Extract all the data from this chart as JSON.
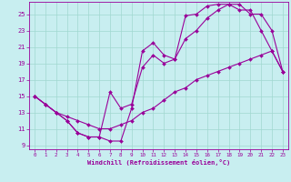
{
  "xlabel": "Windchill (Refroidissement éolien,°C)",
  "background_color": "#c8eef0",
  "grid_color": "#a0d8d0",
  "line_color": "#990099",
  "xlim": [
    -0.5,
    23.5
  ],
  "ylim": [
    8.5,
    26.5
  ],
  "xticks": [
    0,
    1,
    2,
    3,
    4,
    5,
    6,
    7,
    8,
    9,
    10,
    11,
    12,
    13,
    14,
    15,
    16,
    17,
    18,
    19,
    20,
    21,
    22,
    23
  ],
  "yticks": [
    9,
    11,
    13,
    15,
    17,
    19,
    21,
    23,
    25
  ],
  "line1_x": [
    0,
    1,
    2,
    3,
    4,
    5,
    6,
    7,
    8,
    9,
    10,
    11,
    12,
    13,
    14,
    15,
    16,
    17,
    18,
    19,
    20,
    21,
    22,
    23
  ],
  "line1_y": [
    15.0,
    14.0,
    13.0,
    12.0,
    10.5,
    10.0,
    10.0,
    9.5,
    9.5,
    13.5,
    20.5,
    21.5,
    20.0,
    19.5,
    24.8,
    25.0,
    26.0,
    26.2,
    26.2,
    25.5,
    25.5,
    23.0,
    20.5,
    18.0
  ],
  "line2_x": [
    0,
    1,
    2,
    3,
    4,
    5,
    6,
    7,
    8,
    9,
    10,
    11,
    12,
    13,
    14,
    15,
    16,
    17,
    18,
    19,
    20,
    21,
    22,
    23
  ],
  "line2_y": [
    15.0,
    14.0,
    13.0,
    12.0,
    10.5,
    10.0,
    10.0,
    15.5,
    13.5,
    14.0,
    18.5,
    20.0,
    19.0,
    19.5,
    22.0,
    23.0,
    24.5,
    25.5,
    26.2,
    26.2,
    25.0,
    25.0,
    23.0,
    18.0
  ],
  "line3_x": [
    0,
    1,
    2,
    3,
    4,
    5,
    6,
    7,
    8,
    9,
    10,
    11,
    12,
    13,
    14,
    15,
    16,
    17,
    18,
    19,
    20,
    21,
    22,
    23
  ],
  "line3_y": [
    15.0,
    14.0,
    13.0,
    12.5,
    12.0,
    11.5,
    11.0,
    11.0,
    11.5,
    12.0,
    13.0,
    13.5,
    14.5,
    15.5,
    16.0,
    17.0,
    17.5,
    18.0,
    18.5,
    19.0,
    19.5,
    20.0,
    20.5,
    18.0
  ]
}
